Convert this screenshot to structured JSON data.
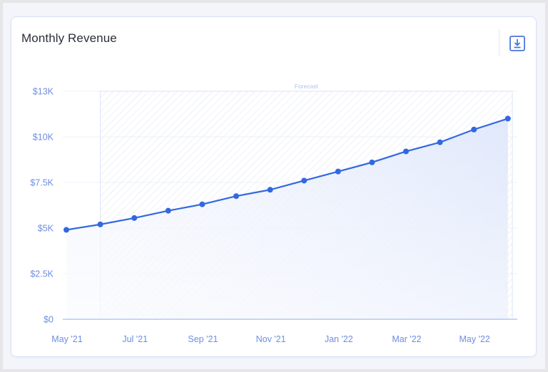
{
  "card": {
    "title": "Monthly Revenue",
    "download_icon": "download-icon"
  },
  "colors": {
    "line": "#3268e0",
    "axis_text": "#6d8ee0",
    "grid": "#eef1f9",
    "baseline": "#a9bcef",
    "forecast_border": "#dbe3fa",
    "forecast_hatch": "#e3e7f2",
    "forecast_label": "#b3c1ee",
    "card_border": "#d9e0f7",
    "page_bg": "#f3f5fb"
  },
  "chart_data": {
    "type": "area",
    "title": "Monthly Revenue",
    "xlabel": "",
    "ylabel": "",
    "x": [
      "May '21",
      "Jun '21",
      "Jul '21",
      "Aug '21",
      "Sep '21",
      "Oct '21",
      "Nov '21",
      "Dec '21",
      "Jan '22",
      "Feb '22",
      "Mar '22",
      "Apr '22",
      "May '22",
      "Jun '22"
    ],
    "series": [
      {
        "name": "Revenue",
        "values": [
          4900,
          5200,
          5550,
          5950,
          6300,
          6750,
          7100,
          7600,
          8100,
          8600,
          9200,
          9700,
          10400,
          11000
        ]
      }
    ],
    "x_tick_labels": [
      "May '21",
      "Jul '21",
      "Sep '21",
      "Nov '21",
      "Jan '22",
      "Mar '22",
      "May '22"
    ],
    "y_ticks": [
      0,
      2500,
      5000,
      7500,
      10000,
      12500
    ],
    "y_tick_labels": [
      "$0",
      "$2.5K",
      "$5K",
      "$7.5K",
      "$10K",
      "$13K"
    ],
    "ylim": [
      0,
      12500
    ],
    "grid": true,
    "legend": "none",
    "annotations": [
      {
        "type": "shaded-region",
        "label": "Forecast",
        "from": "Jun '21",
        "to": "Jun '22"
      }
    ]
  }
}
